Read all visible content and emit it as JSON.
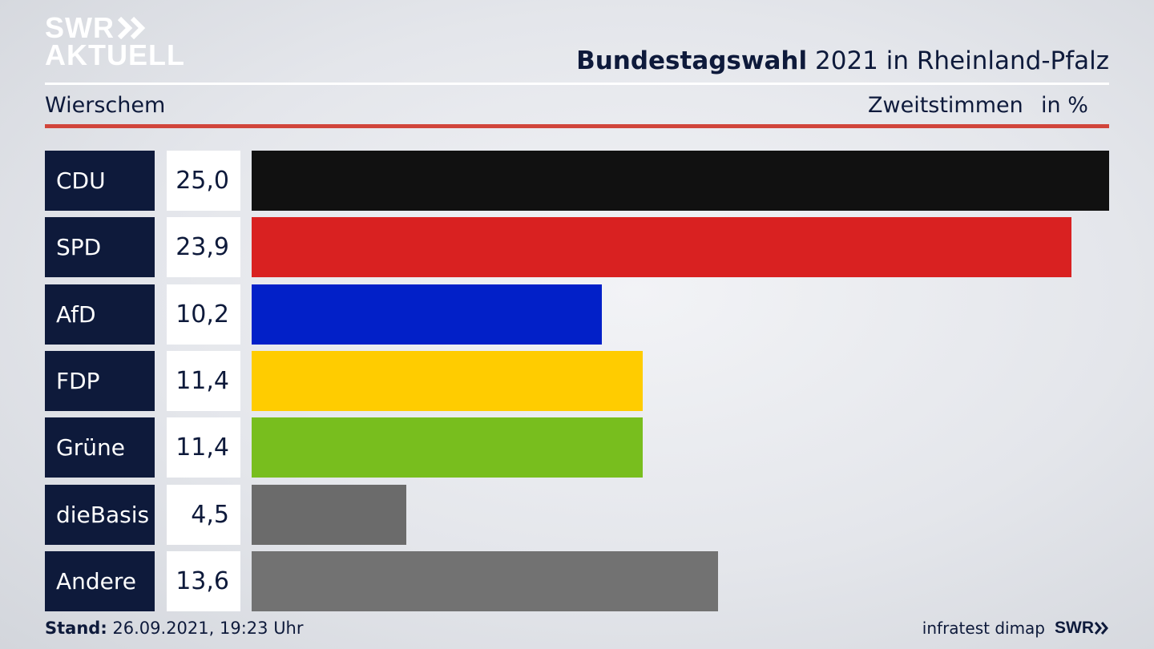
{
  "brand": {
    "logo_line1": "SWR",
    "logo_line2": "AKTUELL",
    "logo_icon": "double-chevron-right-icon"
  },
  "header": {
    "title_bold": "Bundestagswahl",
    "title_rest": "2021 in Rheinland-Pfalz",
    "subtitle": "Wierschem",
    "measure": "Zweitstimmen",
    "unit": "in %"
  },
  "footer": {
    "stand_label": "Stand:",
    "stand_value": "26.09.2021, 19:23 Uhr",
    "source": "infratest dimap",
    "source_logo": "SWR"
  },
  "colors": {
    "accent_rule": "#d1453b",
    "label_bg": "#0e1a3b"
  },
  "chart_data": {
    "type": "bar",
    "orientation": "horizontal",
    "categories": [
      "CDU",
      "SPD",
      "AfD",
      "FDP",
      "Grüne",
      "dieBasis",
      "Andere"
    ],
    "values": [
      25.0,
      23.9,
      10.2,
      11.4,
      11.4,
      4.5,
      13.6
    ],
    "value_labels": [
      "25,0",
      "23,9",
      "10,2",
      "11,4",
      "11,4",
      "4,5",
      "13,6"
    ],
    "colors": [
      "#111111",
      "#d92121",
      "#0220c8",
      "#ffcc00",
      "#78be1e",
      "#6b6b6b",
      "#727272"
    ],
    "xlim": [
      0,
      25.0
    ]
  }
}
